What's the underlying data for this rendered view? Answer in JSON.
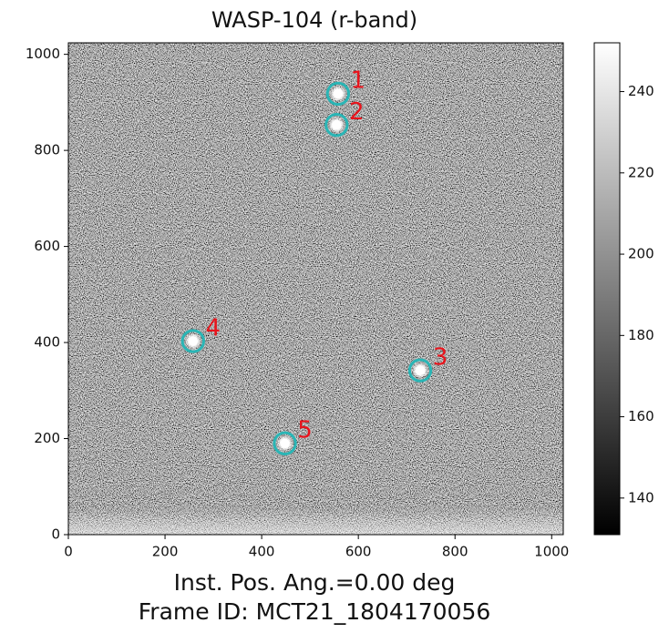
{
  "chart_data": {
    "type": "image",
    "title": "WASP-104 (r-band)",
    "xlabel_lines": [
      "Inst. Pos. Ang.=0.00 deg",
      "Frame ID: MCT21_1804170056"
    ],
    "xlim": [
      0,
      1024
    ],
    "ylim": [
      0,
      1024
    ],
    "xticks": [
      0,
      200,
      400,
      600,
      800,
      1000
    ],
    "yticks": [
      0,
      200,
      400,
      600,
      800,
      1000
    ],
    "sources": [
      {
        "label": "1",
        "x": 558,
        "y": 918
      },
      {
        "label": "2",
        "x": 555,
        "y": 853
      },
      {
        "label": "3",
        "x": 728,
        "y": 342
      },
      {
        "label": "4",
        "x": 258,
        "y": 403
      },
      {
        "label": "5",
        "x": 448,
        "y": 190
      }
    ],
    "aperture_radius": 22,
    "aperture_color": "#2ab5b5",
    "label_color": "#e8141c",
    "colorbar": {
      "lim": [
        131,
        252
      ],
      "ticks": [
        140,
        160,
        180,
        200,
        220,
        240
      ],
      "cmap": [
        "#000000",
        "#ffffff"
      ]
    }
  }
}
